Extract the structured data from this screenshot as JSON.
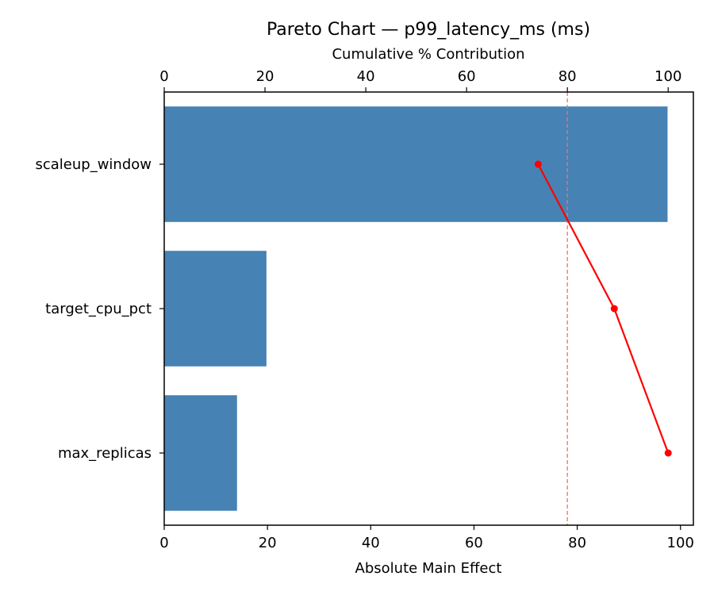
{
  "chart_data": {
    "type": "bar",
    "orientation": "horizontal",
    "title": "Pareto Chart — p99_latency_ms (ms)",
    "xlabel": "Absolute Main Effect",
    "x2label": "Cumulative % Contribution",
    "ylabel": "",
    "categories": [
      "scaleup_window",
      "target_cpu_pct",
      "max_replicas"
    ],
    "series": [
      {
        "name": "Absolute Main Effect",
        "type": "bar",
        "axis": "bottom",
        "color": "#4682b4",
        "values": [
          97.5,
          19.8,
          14.1
        ]
      },
      {
        "name": "Cumulative %",
        "type": "line",
        "axis": "top",
        "color": "#ff0000",
        "marker": "circle",
        "values": [
          74.2,
          89.3,
          100.0
        ]
      }
    ],
    "reference_lines": [
      {
        "axis": "top",
        "value": 80,
        "style": "dashed",
        "color": "#ff6b6b"
      }
    ],
    "xlim": [
      0,
      102.5
    ],
    "x2lim": [
      0,
      105
    ],
    "xticks": [
      0,
      20,
      40,
      60,
      80,
      100
    ],
    "x2ticks": [
      0,
      20,
      40,
      60,
      80,
      100
    ],
    "grid": false,
    "legend": null
  }
}
